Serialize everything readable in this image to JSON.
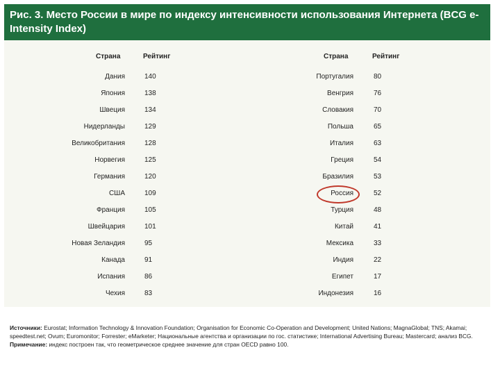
{
  "title": "Рис. 3. Место России в мире по индексу интенсивности использования Интернета (BCG e-Intensity Index)",
  "header": {
    "country": "Страна",
    "rating": "Рейтинг"
  },
  "left": [
    {
      "country": "Дания",
      "rating": "140"
    },
    {
      "country": "Япония",
      "rating": "138"
    },
    {
      "country": "Швеция",
      "rating": "134"
    },
    {
      "country": "Нидерланды",
      "rating": "129"
    },
    {
      "country": "Великобритания",
      "rating": "128"
    },
    {
      "country": "Норвегия",
      "rating": "125"
    },
    {
      "country": "Германия",
      "rating": "120"
    },
    {
      "country": "США",
      "rating": "109"
    },
    {
      "country": "Франция",
      "rating": "105"
    },
    {
      "country": "Швейцария",
      "rating": "101"
    },
    {
      "country": "Новая Зеландия",
      "rating": "95"
    },
    {
      "country": "Канада",
      "rating": "91"
    },
    {
      "country": "Испания",
      "rating": "86"
    },
    {
      "country": "Чехия",
      "rating": "83"
    }
  ],
  "right": [
    {
      "country": "Португалия",
      "rating": "80"
    },
    {
      "country": "Венгрия",
      "rating": "76"
    },
    {
      "country": "Словакия",
      "rating": "70"
    },
    {
      "country": "Польша",
      "rating": "65"
    },
    {
      "country": "Италия",
      "rating": "63"
    },
    {
      "country": "Греция",
      "rating": "54"
    },
    {
      "country": "Бразилия",
      "rating": "53"
    },
    {
      "country": "Россия",
      "rating": "52"
    },
    {
      "country": "Турция",
      "rating": "48"
    },
    {
      "country": "Китай",
      "rating": "41"
    },
    {
      "country": "Мексика",
      "rating": "33"
    },
    {
      "country": "Индия",
      "rating": "22"
    },
    {
      "country": "Египет",
      "rating": "17"
    },
    {
      "country": "Индонезия",
      "rating": "16"
    }
  ],
  "highlight_country": "Россия",
  "highlight_color": "#c0392b",
  "sources_label": "Источники:",
  "sources_text": "Eurostat; Information Technology & Innovation Foundation; Organisation for Economic Co-Operation and Development; United Nations; MagnaGlobal; TNS; Akamai; speedtest.net; Ovum; Euromonitor; Forrester; eMarketer; Национальные агентства и организации по гос. статистике; International Advertising Bureau; Mastercard; анализ BCG.",
  "note_label": "Примечание:",
  "note_text": "индекс построен так, что геометрическое среднее значение для стран OECD равно 100."
}
